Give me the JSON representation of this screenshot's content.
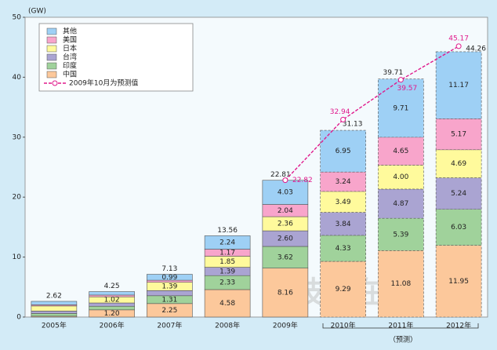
{
  "chart_data": {
    "type": "stacked_bar_line",
    "y_unit_label": "(GW)",
    "categories": [
      "2005年",
      "2006年",
      "2007年",
      "2008年",
      "2009年",
      "2010年",
      "2011年",
      "2012年"
    ],
    "series": [
      {
        "name": "中国",
        "color": "#fcc89b",
        "values": [
          0.15,
          1.2,
          2.25,
          4.58,
          8.16,
          9.29,
          11.08,
          11.95
        ],
        "value_labels": [
          null,
          "1.20",
          "2.25",
          "4.58",
          "8.16",
          "9.29",
          "11.08",
          "11.95"
        ]
      },
      {
        "name": "印度",
        "color": "#a0d29b",
        "values": [
          0.45,
          0.6,
          1.31,
          2.33,
          3.62,
          4.33,
          5.39,
          6.03
        ],
        "value_labels": [
          null,
          null,
          "1.31",
          "2.33",
          "3.62",
          "4.33",
          "5.39",
          "6.03"
        ]
      },
      {
        "name": "台湾",
        "color": "#aaa4d2",
        "values": [
          0.4,
          0.55,
          0.85,
          1.39,
          2.6,
          3.84,
          4.87,
          5.24
        ],
        "value_labels": [
          null,
          null,
          null,
          "1.39",
          "2.60",
          "3.84",
          "4.87",
          "5.24"
        ]
      },
      {
        "name": "日本",
        "color": "#fffa9c",
        "values": [
          0.85,
          1.02,
          1.39,
          1.85,
          2.36,
          3.49,
          4.0,
          4.69
        ],
        "value_labels": [
          null,
          "1.02",
          "1.39",
          "1.85",
          "2.36",
          "3.49",
          "4.00",
          "4.69"
        ]
      },
      {
        "name": "美国",
        "color": "#f8a5cb",
        "values": [
          0.2,
          0.3,
          0.34,
          1.17,
          2.04,
          3.24,
          4.65,
          5.17
        ],
        "value_labels": [
          null,
          null,
          null,
          "1.17",
          "2.04",
          "3.24",
          "4.65",
          "5.17"
        ]
      },
      {
        "name": "其他",
        "color": "#9ed0f5",
        "values": [
          0.57,
          0.58,
          0.99,
          2.24,
          4.03,
          6.95,
          9.71,
          11.17
        ],
        "value_labels": [
          null,
          null,
          "0.99",
          "2.24",
          "4.03",
          "6.95",
          "9.71",
          "11.17"
        ]
      }
    ],
    "totals": [
      2.62,
      4.25,
      7.13,
      13.56,
      22.81,
      31.13,
      39.71,
      44.26
    ],
    "total_labels": [
      "2.62",
      "4.25",
      "7.13",
      "13.56",
      "22.81",
      "31.13",
      "39.71",
      "44.26"
    ],
    "line": {
      "name": "2009年10月为预测值",
      "color": "#e0198c",
      "values": [
        null,
        null,
        null,
        null,
        22.82,
        32.94,
        39.57,
        45.17
      ]
    },
    "forecast_label": "（预测）",
    "watermark": "技术在线！",
    "ylim": [
      0,
      50
    ],
    "yticks": [
      0,
      10,
      20,
      30,
      40,
      50
    ]
  }
}
